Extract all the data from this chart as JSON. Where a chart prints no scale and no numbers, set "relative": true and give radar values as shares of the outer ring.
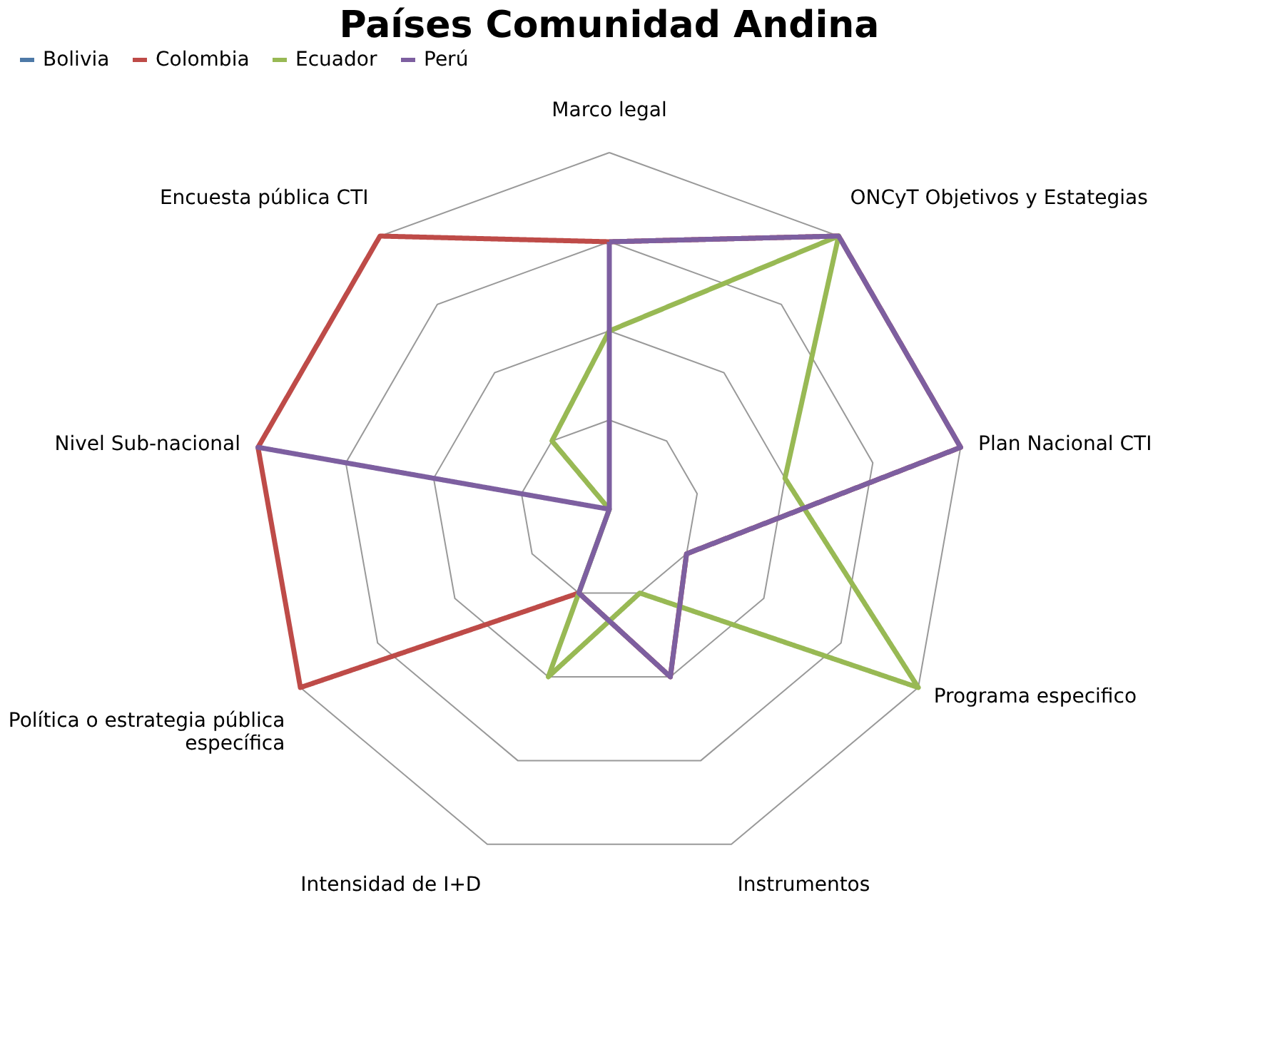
{
  "chart_data": {
    "type": "radar",
    "title": "Países Comunidad Andina",
    "relative": true,
    "legend": "top",
    "grid": true,
    "categories": [
      "Marco legal",
      "ONCyT Objetivos y Estategias",
      "Plan Nacional CTI",
      "Programa especifico",
      "Instrumentos",
      "Intensidad de I+D",
      "Política o estrategia pública específica",
      "Nivel Sub-nacional",
      "Encuesta pública CTI"
    ],
    "series": [
      {
        "name": "Bolivia",
        "values": [
          null,
          null,
          null,
          null,
          null,
          null,
          null,
          null,
          null
        ]
      },
      {
        "name": "Colombia",
        "color": "#be4b48",
        "values": [
          0.75,
          1,
          1,
          0.25,
          0.5,
          0.25,
          1,
          1,
          1
        ]
      },
      {
        "name": "Ecuador",
        "color": "#98b954",
        "values": [
          0.5,
          1,
          0.5,
          1,
          0.25,
          0.5,
          0,
          0,
          0.25
        ]
      },
      {
        "name": "Perú",
        "color": "#7d5fa0",
        "values": [
          0.75,
          1,
          1,
          0.25,
          0.5,
          0.25,
          0,
          1,
          0
        ]
      }
    ]
  }
}
